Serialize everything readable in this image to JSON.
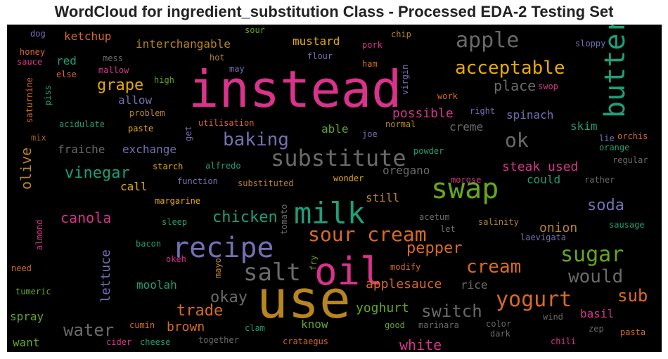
{
  "chart_data": {
    "type": "wordcloud",
    "title": "WordCloud for ingredient_substitution Class - Processed EDA-2 Testing Set",
    "palette": [
      "#d9338b",
      "#b8861f",
      "#d96b1f",
      "#1f9e78",
      "#7570b3",
      "#6a6a6a",
      "#66a61e",
      "#e6ab02",
      "#a0621e"
    ],
    "words": [
      {
        "text": "instead",
        "color": "#d9338b"
      },
      {
        "text": "use",
        "color": "#b8861f"
      },
      {
        "text": "oil",
        "color": "#d9338b"
      },
      {
        "text": "milk",
        "color": "#1f9e78"
      },
      {
        "text": "swap",
        "color": "#66a61e"
      },
      {
        "text": "recipe",
        "color": "#7570b3"
      },
      {
        "text": "salt",
        "color": "#6a6a6a"
      },
      {
        "text": "substitute",
        "color": "#6a6a6a"
      },
      {
        "text": "sour cream",
        "color": "#d96b1f"
      },
      {
        "text": "butter",
        "color": "#1f9e78"
      },
      {
        "text": "apple",
        "color": "#6a6a6a"
      },
      {
        "text": "yogurt",
        "color": "#d96b1f"
      },
      {
        "text": "acceptable",
        "color": "#e6ab02"
      },
      {
        "text": "sugar",
        "color": "#66a61e"
      },
      {
        "text": "baking",
        "color": "#7570b3"
      },
      {
        "text": "ok",
        "color": "#6a6a6a"
      },
      {
        "text": "cream",
        "color": "#d96b1f"
      },
      {
        "text": "would",
        "color": "#6a6a6a"
      },
      {
        "text": "pepper",
        "color": "#d96b1f"
      },
      {
        "text": "switch",
        "color": "#6a6a6a"
      },
      {
        "text": "water",
        "color": "#6a6a6a"
      },
      {
        "text": "chicken",
        "color": "#1f9e78"
      },
      {
        "text": "sub",
        "color": "#d96b1f"
      },
      {
        "text": "grape",
        "color": "#e6ab02"
      },
      {
        "text": "vinegar",
        "color": "#1f9e78"
      },
      {
        "text": "canola",
        "color": "#d9338b"
      },
      {
        "text": "okay",
        "color": "#6a6a6a"
      },
      {
        "text": "soda",
        "color": "#7570b3"
      },
      {
        "text": "trade",
        "color": "#d96b1f"
      },
      {
        "text": "applesauce",
        "color": "#d96b1f"
      },
      {
        "text": "white",
        "color": "#d9338b"
      },
      {
        "text": "place",
        "color": "#6a6a6a"
      },
      {
        "text": "possible",
        "color": "#d9338b"
      },
      {
        "text": "steak used",
        "color": "#d9338b"
      },
      {
        "text": "olive",
        "color": "#b8861f"
      },
      {
        "text": "lettuce",
        "color": "#7570b3"
      },
      {
        "text": "brown",
        "color": "#d96b1f"
      },
      {
        "text": "yoghurt",
        "color": "#66a61e"
      },
      {
        "text": "onion",
        "color": "#b8861f"
      },
      {
        "text": "spinach",
        "color": "#7570b3"
      },
      {
        "text": "ketchup",
        "color": "#d96b1f"
      },
      {
        "text": "mustard",
        "color": "#e6ab02"
      },
      {
        "text": "red",
        "color": "#1f9e78"
      },
      {
        "text": "allow",
        "color": "#7570b3"
      },
      {
        "text": "exchange",
        "color": "#7570b3"
      },
      {
        "text": "fraiche",
        "color": "#6a6a6a"
      },
      {
        "text": "interchangable",
        "color": "#b8861f"
      },
      {
        "text": "call",
        "color": "#e6ab02"
      },
      {
        "text": "able",
        "color": "#66a61e"
      },
      {
        "text": "creme",
        "color": "#6a6a6a"
      },
      {
        "text": "skim",
        "color": "#1f9e78"
      },
      {
        "text": "still",
        "color": "#b8861f"
      },
      {
        "text": "could",
        "color": "#1f9e78"
      },
      {
        "text": "oregano",
        "color": "#6a6a6a"
      },
      {
        "text": "know",
        "color": "#66a61e"
      },
      {
        "text": "moolah",
        "color": "#1f9e78"
      },
      {
        "text": "spray",
        "color": "#66a61e"
      },
      {
        "text": "want",
        "color": "#66a61e"
      },
      {
        "text": "basil",
        "color": "#d9338b"
      },
      {
        "text": "rice",
        "color": "#6a6a6a"
      },
      {
        "text": "dog",
        "color": "#7570b3"
      },
      {
        "text": "sour",
        "color": "#66a61e"
      },
      {
        "text": "chip",
        "color": "#b8861f"
      },
      {
        "text": "pork",
        "color": "#d9338b"
      },
      {
        "text": "sloppy",
        "color": "#7570b3"
      },
      {
        "text": "honey",
        "color": "#d96b1f"
      },
      {
        "text": "sauce",
        "color": "#d9338b"
      },
      {
        "text": "else",
        "color": "#d96b1f"
      },
      {
        "text": "mess",
        "color": "#6a6a6a"
      },
      {
        "text": "mallow",
        "color": "#d9338b"
      },
      {
        "text": "hot",
        "color": "#b8861f"
      },
      {
        "text": "flour",
        "color": "#7570b3"
      },
      {
        "text": "ham",
        "color": "#d96b1f"
      },
      {
        "text": "may",
        "color": "#7570b3"
      },
      {
        "text": "virgin",
        "color": "#7570b3"
      },
      {
        "text": "high",
        "color": "#66a61e"
      },
      {
        "text": "work",
        "color": "#d96b1f"
      },
      {
        "text": "swop",
        "color": "#d9338b"
      },
      {
        "text": "saturnine",
        "color": "#d96b1f"
      },
      {
        "text": "piss",
        "color": "#1f9e78"
      },
      {
        "text": "problem",
        "color": "#b8861f"
      },
      {
        "text": "right",
        "color": "#7570b3"
      },
      {
        "text": "paste",
        "color": "#e6ab02"
      },
      {
        "text": "acidulate",
        "color": "#1f9e78"
      },
      {
        "text": "get",
        "color": "#7570b3"
      },
      {
        "text": "utilisation",
        "color": "#d96b1f"
      },
      {
        "text": "normal",
        "color": "#b8861f"
      },
      {
        "text": "joe",
        "color": "#7570b3"
      },
      {
        "text": "orchis",
        "color": "#d96b1f"
      },
      {
        "text": "lie",
        "color": "#7570b3"
      },
      {
        "text": "orange",
        "color": "#1f9e78"
      },
      {
        "text": "mix",
        "color": "#a0621e"
      },
      {
        "text": "powder",
        "color": "#1f9e78"
      },
      {
        "text": "starch",
        "color": "#e6ab02"
      },
      {
        "text": "alfredo",
        "color": "#1f9e78"
      },
      {
        "text": "regular",
        "color": "#6a6a6a"
      },
      {
        "text": "function",
        "color": "#7570b3"
      },
      {
        "text": "substituted",
        "color": "#b8861f"
      },
      {
        "text": "wonder",
        "color": "#e6ab02"
      },
      {
        "text": "morose",
        "color": "#d9338b"
      },
      {
        "text": "rather",
        "color": "#6a6a6a"
      },
      {
        "text": "margarine",
        "color": "#e6ab02"
      },
      {
        "text": "almond",
        "color": "#d9338b"
      },
      {
        "text": "sleep",
        "color": "#1f9e78"
      },
      {
        "text": "tomato",
        "color": "#6a6a6a"
      },
      {
        "text": "acetum",
        "color": "#6a6a6a"
      },
      {
        "text": "salinity",
        "color": "#b8861f"
      },
      {
        "text": "sausage",
        "color": "#1f9e78"
      },
      {
        "text": "let",
        "color": "#6a6a6a"
      },
      {
        "text": "laevigata",
        "color": "#7570b3"
      },
      {
        "text": "bacon",
        "color": "#1f9e78"
      },
      {
        "text": "okeh",
        "color": "#d9338b"
      },
      {
        "text": "fry",
        "color": "#66a61e"
      },
      {
        "text": "modify",
        "color": "#d96b1f"
      },
      {
        "text": "mayo",
        "color": "#b8861f"
      },
      {
        "text": "need",
        "color": "#d96b1f"
      },
      {
        "text": "tumeric",
        "color": "#66a61e"
      },
      {
        "text": "cumin",
        "color": "#d96b1f"
      },
      {
        "text": "clam",
        "color": "#1f9e78"
      },
      {
        "text": "good",
        "color": "#66a61e"
      },
      {
        "text": "marinara",
        "color": "#6a6a6a"
      },
      {
        "text": "color",
        "color": "#6a6a6a"
      },
      {
        "text": "wind",
        "color": "#6a6a6a"
      },
      {
        "text": "dark",
        "color": "#6a6a6a"
      },
      {
        "text": "zep",
        "color": "#6a6a6a"
      },
      {
        "text": "pasta",
        "color": "#d96b1f"
      },
      {
        "text": "cider",
        "color": "#d9338b"
      },
      {
        "text": "cheese",
        "color": "#1f9e78"
      },
      {
        "text": "together",
        "color": "#6a6a6a"
      },
      {
        "text": "crataegus",
        "color": "#d96b1f"
      },
      {
        "text": "chili",
        "color": "#d9338b"
      }
    ]
  }
}
